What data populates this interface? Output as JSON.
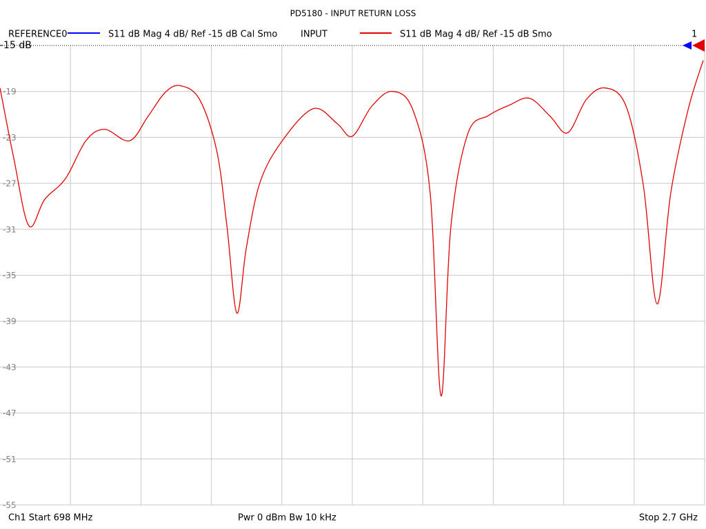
{
  "chart_data": {
    "type": "line",
    "title": "PD5180 - INPUT RETURN LOSS",
    "reference_trace": {
      "name": "REFERENCE0",
      "color": "#0000ff",
      "format": "S11  dB Mag  4 dB/ Ref -15 dB  Cal Smo"
    },
    "marker_label": "1",
    "x": [
      698,
      737,
      780,
      825,
      884,
      942,
      995,
      1066,
      1118,
      1167,
      1210,
      1265,
      1314,
      1343,
      1371,
      1398,
      1437,
      1500,
      1588,
      1656,
      1699,
      1754,
      1812,
      1871,
      1920,
      1951,
      1979,
      2027,
      2086,
      2145,
      2203,
      2262,
      2311,
      2364,
      2418,
      2477,
      2526,
      2565,
      2604,
      2653,
      2696
    ],
    "series": [
      {
        "name": "INPUT",
        "color": "#e00000",
        "format": "S11  dB Mag  4 dB/ Ref -15 dB  Smo",
        "values": [
          -18.7,
          -24.8,
          -30.7,
          -28.4,
          -26.6,
          -23.3,
          -22.3,
          -23.3,
          -21.2,
          -19.1,
          -18.5,
          -19.7,
          -24.2,
          -30.8,
          -38.3,
          -32.6,
          -26.9,
          -23.3,
          -20.5,
          -21.8,
          -22.9,
          -20.3,
          -19.0,
          -20.6,
          -27.8,
          -45.5,
          -30.8,
          -22.7,
          -21.1,
          -20.2,
          -19.6,
          -21.2,
          -22.6,
          -19.7,
          -18.7,
          -20.3,
          -27.2,
          -37.5,
          -27.8,
          -20.6,
          -16.3
        ]
      }
    ],
    "xlim": [
      698,
      2700
    ],
    "ylim": [
      -55,
      -15
    ],
    "yticks": [
      {
        "value": -15,
        "label": "-15 dB"
      },
      -19,
      -23,
      -27,
      -31,
      -35,
      -39,
      -43,
      -47,
      -51,
      -55
    ],
    "grid": true,
    "footer": {
      "start": "Ch1  Start  698 MHz",
      "power": "Pwr  0 dBm  Bw  10 kHz",
      "stop": "Stop  2.7 GHz"
    }
  }
}
